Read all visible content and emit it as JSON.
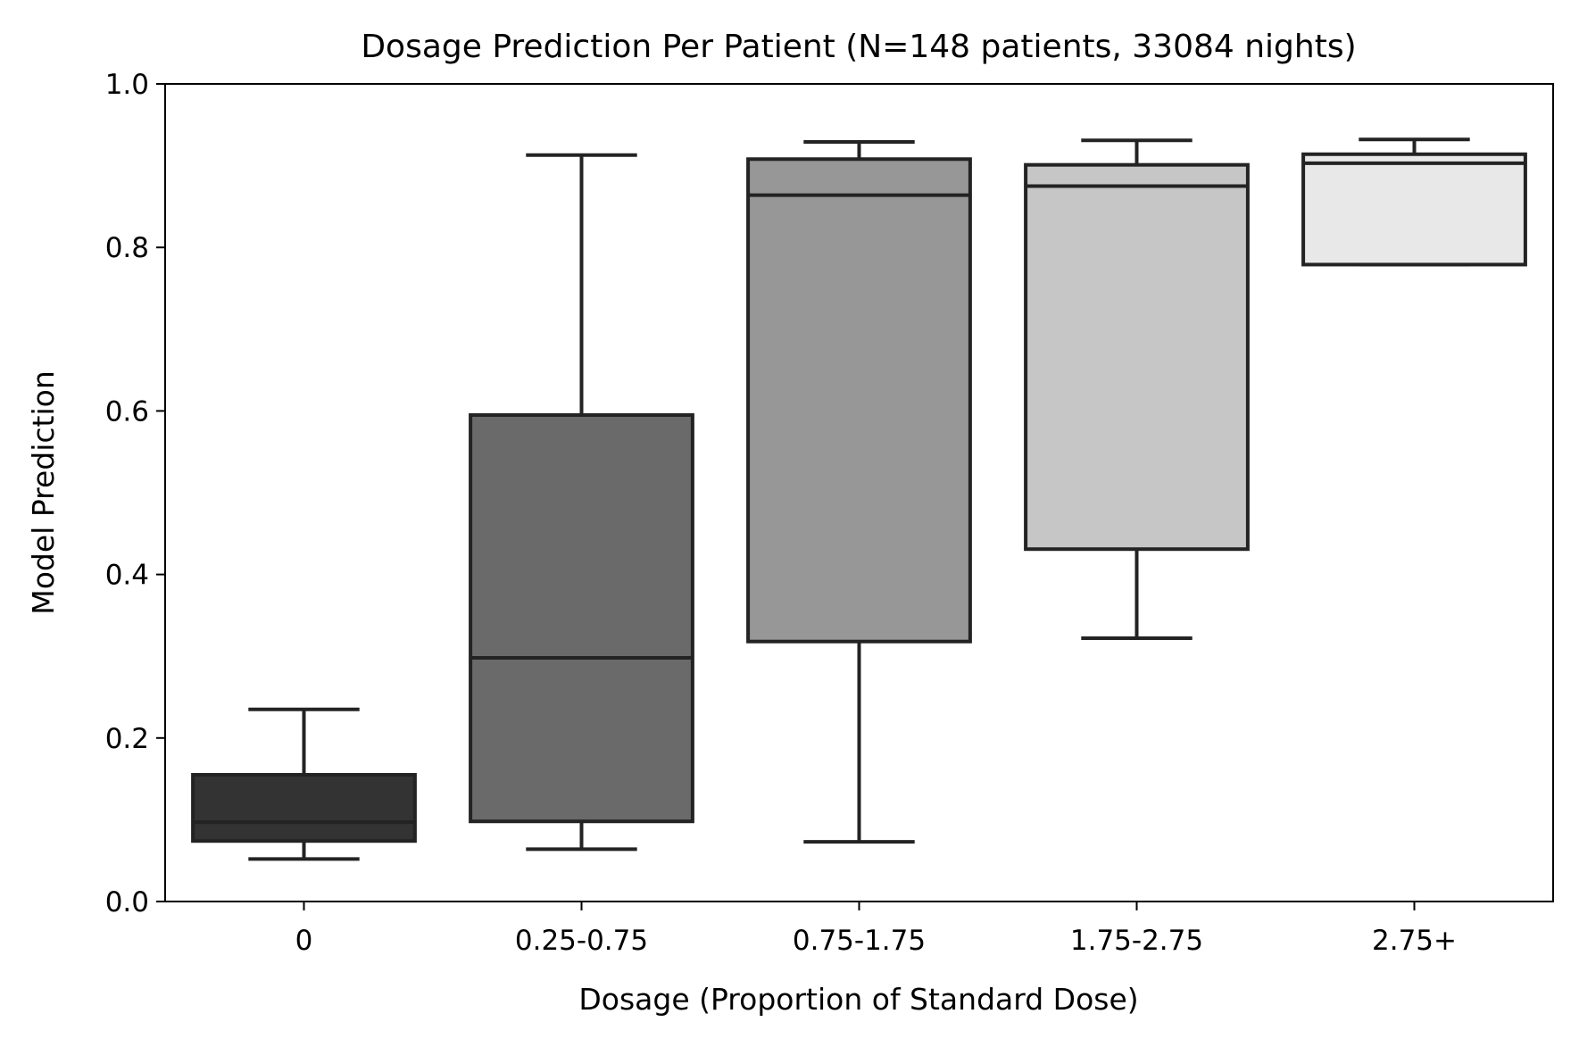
{
  "chart_data": {
    "type": "box",
    "title": "Dosage Prediction Per Patient (N=148 patients, 33084 nights)",
    "xlabel": "Dosage (Proportion of Standard Dose)",
    "ylabel": "Model Prediction",
    "ylim": [
      0.0,
      1.0
    ],
    "yticks": [
      "0.0",
      "0.2",
      "0.4",
      "0.6",
      "0.8",
      "1.0"
    ],
    "grid": false,
    "categories": [
      "0",
      "0.25-0.75",
      "0.75-1.75",
      "1.75-2.75",
      "2.75+"
    ],
    "boxes": [
      {
        "category": "0",
        "whisker_low": 0.052,
        "q1": 0.074,
        "median": 0.097,
        "q3": 0.155,
        "whisker_high": 0.235,
        "fill": "#333333"
      },
      {
        "category": "0.25-0.75",
        "whisker_low": 0.064,
        "q1": 0.098,
        "median": 0.298,
        "q3": 0.595,
        "whisker_high": 0.913,
        "fill": "#6a6a6a"
      },
      {
        "category": "0.75-1.75",
        "whisker_low": 0.073,
        "q1": 0.318,
        "median": 0.864,
        "q3": 0.908,
        "whisker_high": 0.929,
        "fill": "#979797"
      },
      {
        "category": "1.75-2.75",
        "whisker_low": 0.322,
        "q1": 0.431,
        "median": 0.875,
        "q3": 0.901,
        "whisker_high": 0.931,
        "fill": "#c6c6c6"
      },
      {
        "category": "2.75+",
        "whisker_low": 0.779,
        "q1": 0.779,
        "median": 0.903,
        "q3": 0.914,
        "whisker_high": 0.932,
        "fill": "#e8e8e8"
      }
    ],
    "line_color": "#232323"
  }
}
